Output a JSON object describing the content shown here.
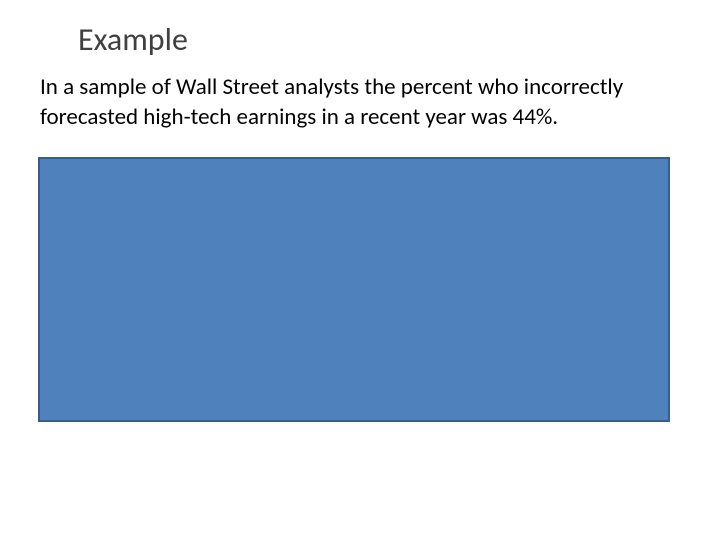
{
  "slide": {
    "title": "Example",
    "body_text": "In a sample of Wall Street analysts the percent who incorrectly forecasted high-tech earnings in a recent year was 44%.",
    "box": {
      "fill_color": "#4f81bd",
      "border_color": "#385d8a",
      "border_width": 2
    },
    "background_color": "#ffffff",
    "title_color": "#404040",
    "text_color": "#000000",
    "title_fontsize": 32,
    "body_fontsize": 23
  }
}
